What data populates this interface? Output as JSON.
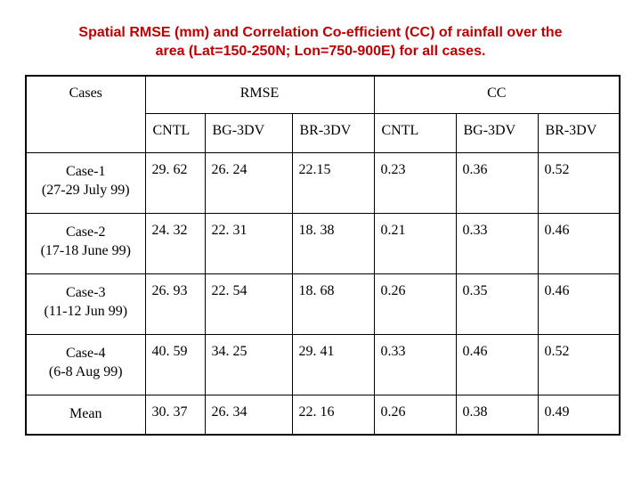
{
  "title": {
    "line1": "Spatial RMSE (mm) and Correlation Co-efficient (CC) of rainfall over the",
    "line2": "area (Lat=150-250N; Lon=750-900E) for all cases."
  },
  "table": {
    "header": {
      "cases": "Cases",
      "rmse": "RMSE",
      "cc": "CC"
    },
    "subheaders": [
      "CNTL",
      "BG-3DV",
      "BR-3DV",
      "CNTL",
      "BG-3DV",
      "BR-3DV"
    ],
    "rows": [
      {
        "case": "Case-1",
        "period": "(27-29 July 99)",
        "values": [
          "29. 62",
          "26. 24",
          "22.15",
          "0.23",
          "0.36",
          "0.52"
        ]
      },
      {
        "case": "Case-2",
        "period": "(17-18 June 99)",
        "values": [
          "24. 32",
          "22. 31",
          "18. 38",
          "0.21",
          "0.33",
          "0.46"
        ]
      },
      {
        "case": "Case-3",
        "period": "(11-12 Jun 99)",
        "values": [
          "26. 93",
          "22. 54",
          "18. 68",
          "0.26",
          "0.35",
          "0.46"
        ]
      },
      {
        "case": "Case-4",
        "period": "(6-8 Aug 99)",
        "values": [
          "40. 59",
          "34. 25",
          "29. 41",
          "0.33",
          "0.46",
          "0.52"
        ]
      },
      {
        "case": "Mean",
        "period": "",
        "values": [
          "30. 37",
          "26. 34",
          "22. 16",
          "0.26",
          "0.38",
          "0.49"
        ]
      }
    ]
  }
}
